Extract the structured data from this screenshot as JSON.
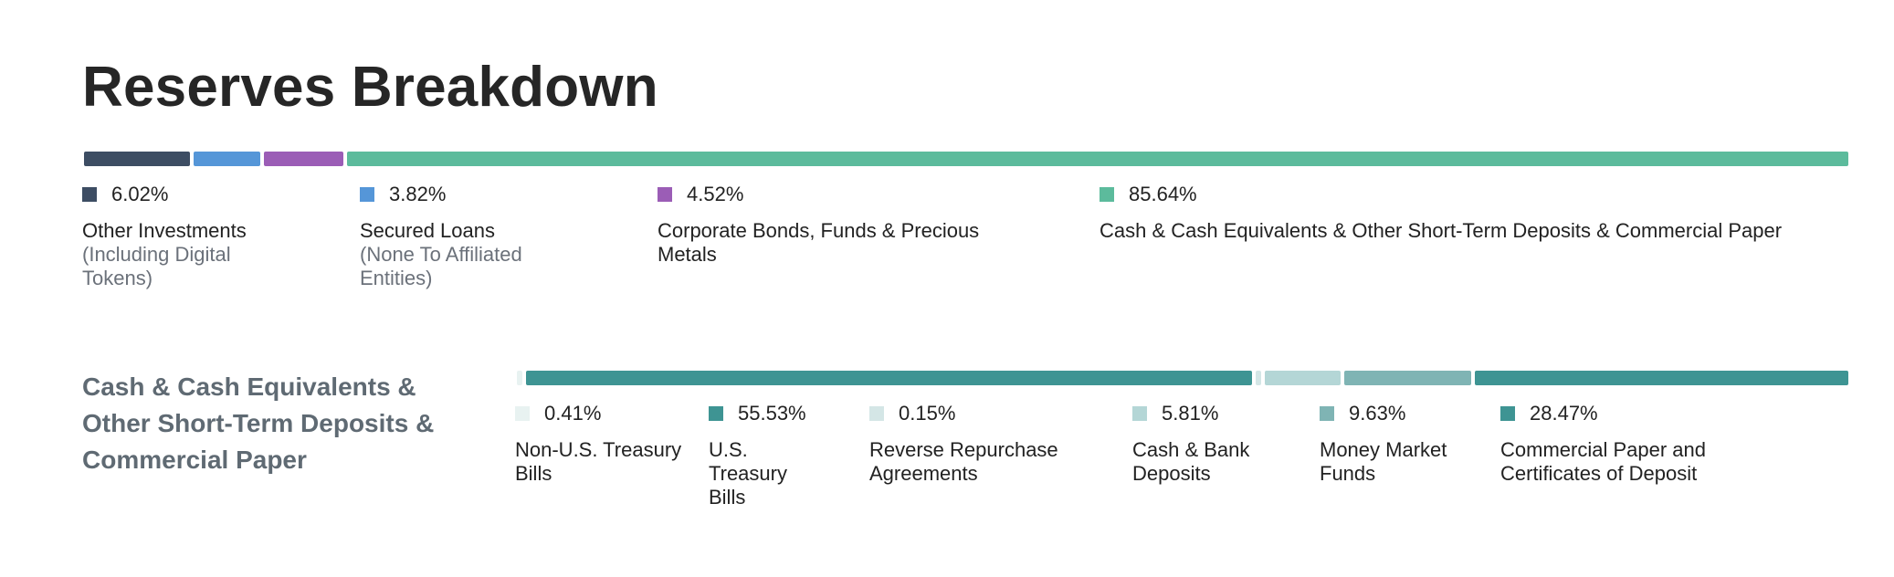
{
  "title": "Reserves Breakdown",
  "top": {
    "segments": [
      {
        "pct": "6.02%",
        "value": 6.02,
        "label": "Other Investments",
        "sublabel": "(Including Digital Tokens)",
        "color": "#3d4d63"
      },
      {
        "pct": "3.82%",
        "value": 3.82,
        "label": "Secured Loans",
        "sublabel": "(None To Affiliated Entities)",
        "color": "#5596d8"
      },
      {
        "pct": "4.52%",
        "value": 4.52,
        "label": "Corporate Bonds, Funds & Precious Metals",
        "sublabel": "",
        "color": "#9b5db6"
      },
      {
        "pct": "85.64%",
        "value": 85.64,
        "label": "Cash & Cash Equivalents & Other Short-Term Deposits & Commercial Paper",
        "sublabel": "",
        "color": "#5cbb9c"
      }
    ]
  },
  "breakdown": {
    "title": "Cash & Cash Equivalents & Other Short-Term Deposits & Commercial Paper",
    "segments": [
      {
        "pct": "0.41%",
        "value": 0.41,
        "label": "Non-U.S. Treasury Bills",
        "color": "#e8f2f1"
      },
      {
        "pct": "55.53%",
        "value": 55.53,
        "label": "U.S. Treasury Bills",
        "color": "#3e9493"
      },
      {
        "pct": "0.15%",
        "value": 0.15,
        "label": "Reverse Repurchase Agreements",
        "color": "#d4e6e6"
      },
      {
        "pct": "5.81%",
        "value": 5.81,
        "label": "Cash & Bank Deposits",
        "color": "#b4d6d6"
      },
      {
        "pct": "9.63%",
        "value": 9.63,
        "label": "Money Market Funds",
        "color": "#7fb4b4"
      },
      {
        "pct": "28.47%",
        "value": 28.47,
        "label": "Commercial Paper and Certificates of Deposit",
        "color": "#3e9493"
      }
    ]
  }
}
